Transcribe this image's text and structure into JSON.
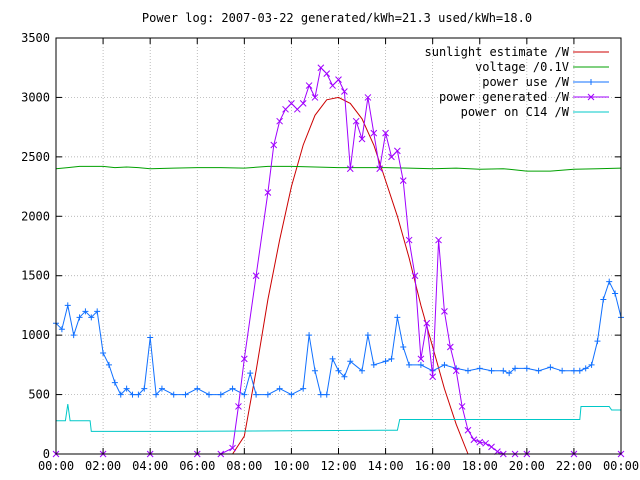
{
  "chart_data": {
    "type": "line",
    "title": "Power log: 2007-03-22 generated/kWh=21.3 used/kWh=18.0",
    "xlabel": "",
    "ylabel": "",
    "xlim": [
      0,
      24
    ],
    "ylim": [
      0,
      3500
    ],
    "x_ticks": [
      "00:00",
      "02:00",
      "04:00",
      "06:00",
      "08:00",
      "10:00",
      "12:00",
      "14:00",
      "16:00",
      "18:00",
      "20:00",
      "22:00",
      "00:00"
    ],
    "y_ticks": [
      "0",
      "500",
      "1000",
      "1500",
      "2000",
      "2500",
      "3000",
      "3500"
    ],
    "grid": true,
    "legend_position": "top-right",
    "series": [
      {
        "name": "sunlight estimate /W",
        "color": "#cc0000",
        "marker": "none",
        "x": [
          7.5,
          8,
          8.5,
          9,
          9.5,
          10,
          10.5,
          11,
          11.5,
          12,
          12.5,
          13,
          13.5,
          14,
          14.5,
          15,
          15.5,
          16,
          16.5,
          17,
          17.5
        ],
        "y": [
          0,
          150,
          700,
          1300,
          1800,
          2250,
          2600,
          2850,
          2980,
          3000,
          2950,
          2820,
          2600,
          2300,
          2000,
          1650,
          1250,
          900,
          550,
          250,
          0
        ]
      },
      {
        "name": "voltage /0.1V",
        "color": "#00a000",
        "marker": "none",
        "x": [
          0,
          0.5,
          1,
          1.5,
          2,
          2.5,
          3,
          3.5,
          4,
          5,
          6,
          7,
          8,
          9,
          10,
          11,
          12,
          13,
          14,
          15,
          16,
          17,
          18,
          19,
          20,
          21,
          22,
          23,
          24
        ],
        "y": [
          2400,
          2410,
          2420,
          2420,
          2420,
          2410,
          2415,
          2410,
          2400,
          2405,
          2410,
          2410,
          2405,
          2420,
          2420,
          2415,
          2410,
          2410,
          2410,
          2405,
          2400,
          2405,
          2395,
          2400,
          2380,
          2380,
          2395,
          2400,
          2405
        ]
      },
      {
        "name": "power use /W",
        "color": "#1070ff",
        "marker": "+",
        "x": [
          0,
          0.25,
          0.5,
          0.75,
          1,
          1.25,
          1.5,
          1.75,
          2,
          2.25,
          2.5,
          2.75,
          3,
          3.25,
          3.5,
          3.75,
          4,
          4.25,
          4.5,
          5,
          5.5,
          6,
          6.5,
          7,
          7.5,
          8,
          8.25,
          8.5,
          9,
          9.5,
          10,
          10.5,
          10.75,
          11,
          11.25,
          11.5,
          11.75,
          12,
          12.25,
          12.5,
          13,
          13.25,
          13.5,
          14,
          14.25,
          14.5,
          14.75,
          15,
          15.5,
          16,
          16.5,
          17,
          17.5,
          18,
          18.5,
          19,
          19.25,
          19.5,
          20,
          20.5,
          21,
          21.5,
          22,
          22.25,
          22.5,
          22.75,
          23,
          23.25,
          23.5,
          23.75,
          24
        ],
        "y": [
          1100,
          1050,
          1250,
          1000,
          1150,
          1200,
          1150,
          1200,
          850,
          750,
          600,
          500,
          550,
          500,
          500,
          550,
          980,
          500,
          550,
          500,
          500,
          550,
          500,
          500,
          550,
          500,
          680,
          500,
          500,
          550,
          500,
          550,
          1000,
          700,
          500,
          500,
          800,
          700,
          650,
          780,
          700,
          1000,
          750,
          780,
          800,
          1150,
          900,
          750,
          750,
          700,
          750,
          720,
          700,
          720,
          700,
          700,
          680,
          720,
          720,
          700,
          730,
          700,
          700,
          700,
          720,
          750,
          950,
          1300,
          1450,
          1350,
          1150
        ]
      },
      {
        "name": "power generated /W",
        "color": "#a000ff",
        "marker": "x",
        "x": [
          0,
          2,
          4,
          6,
          7,
          7.5,
          7.75,
          8,
          8.5,
          9,
          9.25,
          9.5,
          9.75,
          10,
          10.25,
          10.5,
          10.75,
          11,
          11.25,
          11.5,
          11.75,
          12,
          12.25,
          12.5,
          12.75,
          13,
          13.25,
          13.5,
          13.75,
          14,
          14.25,
          14.5,
          14.75,
          15,
          15.25,
          15.5,
          15.75,
          16,
          16.25,
          16.5,
          16.75,
          17,
          17.25,
          17.5,
          17.75,
          18,
          18.25,
          18.5,
          18.75,
          19,
          19.5,
          20,
          22,
          24
        ],
        "y": [
          0,
          0,
          0,
          0,
          0,
          50,
          400,
          800,
          1500,
          2200,
          2600,
          2800,
          2900,
          2950,
          2900,
          2950,
          3100,
          3000,
          3250,
          3200,
          3100,
          3150,
          3050,
          2400,
          2800,
          2650,
          3000,
          2700,
          2400,
          2700,
          2500,
          2550,
          2300,
          1800,
          1500,
          800,
          1100,
          650,
          1800,
          1200,
          900,
          700,
          400,
          200,
          120,
          100,
          90,
          60,
          20,
          0,
          0,
          0,
          0,
          0
        ]
      },
      {
        "name": "power on C14 /W",
        "color": "#00c8c8",
        "marker": "none",
        "x": [
          0,
          0.4,
          0.5,
          0.6,
          1,
          1.45,
          1.5,
          5,
          10,
          14,
          14.5,
          14.6,
          18,
          22.25,
          22.3,
          23.5,
          23.6,
          24
        ],
        "y": [
          280,
          280,
          420,
          280,
          280,
          280,
          190,
          190,
          195,
          200,
          200,
          290,
          290,
          290,
          400,
          400,
          370,
          370
        ]
      }
    ]
  }
}
